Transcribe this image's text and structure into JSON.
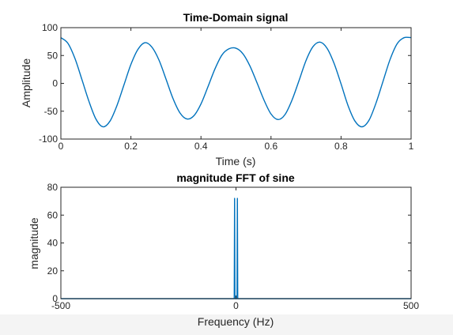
{
  "chart_data": [
    {
      "type": "line",
      "title": "Time-Domain signal",
      "xlabel": "Time (s)",
      "ylabel": "Amplitude",
      "xlim": [
        0,
        1
      ],
      "ylim": [
        -100,
        100
      ],
      "xticks": [
        "0",
        "0.2",
        "0.4",
        "0.6",
        "0.8",
        "1"
      ],
      "yticks": [
        "100",
        "50",
        "0",
        "-50",
        "-100"
      ],
      "series": [
        {
          "color": "#0072BD",
          "x": [
            0,
            0.02,
            0.04,
            0.06,
            0.08,
            0.1,
            0.12,
            0.14,
            0.16,
            0.18,
            0.2,
            0.22,
            0.24,
            0.26,
            0.28,
            0.3,
            0.32,
            0.34,
            0.36,
            0.38,
            0.4,
            0.42,
            0.44,
            0.46,
            0.48,
            0.5,
            0.52,
            0.54,
            0.56,
            0.58,
            0.6,
            0.62,
            0.64,
            0.66,
            0.68,
            0.7,
            0.72,
            0.74,
            0.76,
            0.78,
            0.8,
            0.82,
            0.84,
            0.86,
            0.88,
            0.9,
            0.92,
            0.94,
            0.96,
            0.98,
            1.0
          ],
          "y": [
            82,
            72,
            45,
            7,
            -32,
            -64,
            -78,
            -68,
            -40,
            -3,
            34,
            61,
            73,
            65,
            42,
            8,
            -27,
            -53,
            -64,
            -58,
            -37,
            -6,
            26,
            51,
            62,
            63,
            53,
            31,
            1,
            -30,
            -55,
            -65,
            -56,
            -30,
            5,
            41,
            66,
            74,
            63,
            36,
            -1,
            -40,
            -68,
            -78,
            -66,
            -35,
            4,
            43,
            71,
            82,
            82
          ]
        }
      ]
    },
    {
      "type": "line",
      "title": "magnitude FFT of sine",
      "xlabel": "Frequency (Hz)",
      "ylabel": "magnitude",
      "xlim": [
        -500,
        500
      ],
      "ylim": [
        0,
        80
      ],
      "xticks": [
        "-500",
        "0",
        "500"
      ],
      "yticks": [
        "80",
        "60",
        "40",
        "20",
        "0"
      ],
      "series": [
        {
          "color": "#0072BD",
          "x": [
            -500,
            -8,
            -5,
            -4,
            -3,
            0,
            3,
            4,
            5,
            8,
            500
          ],
          "y": [
            0,
            0,
            0,
            72,
            0,
            0,
            0,
            72,
            0,
            0,
            0
          ]
        }
      ]
    }
  ]
}
